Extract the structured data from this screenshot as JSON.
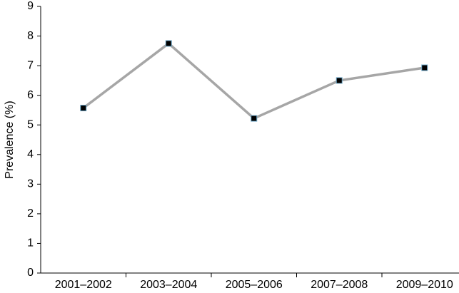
{
  "chart_data": {
    "type": "line",
    "y_label": "Prevalence (%)",
    "categories": [
      "2001–2002",
      "2003–2004",
      "2005–2006",
      "2007–2008",
      "2009–2010"
    ],
    "values": [
      5.57,
      7.75,
      5.22,
      6.5,
      6.93
    ],
    "color": "#a6a6a6",
    "marker_color": "#000000",
    "ylim": [
      0,
      9
    ],
    "yticks": [
      0,
      1,
      2,
      3,
      4,
      5,
      6,
      7,
      8,
      9
    ]
  }
}
